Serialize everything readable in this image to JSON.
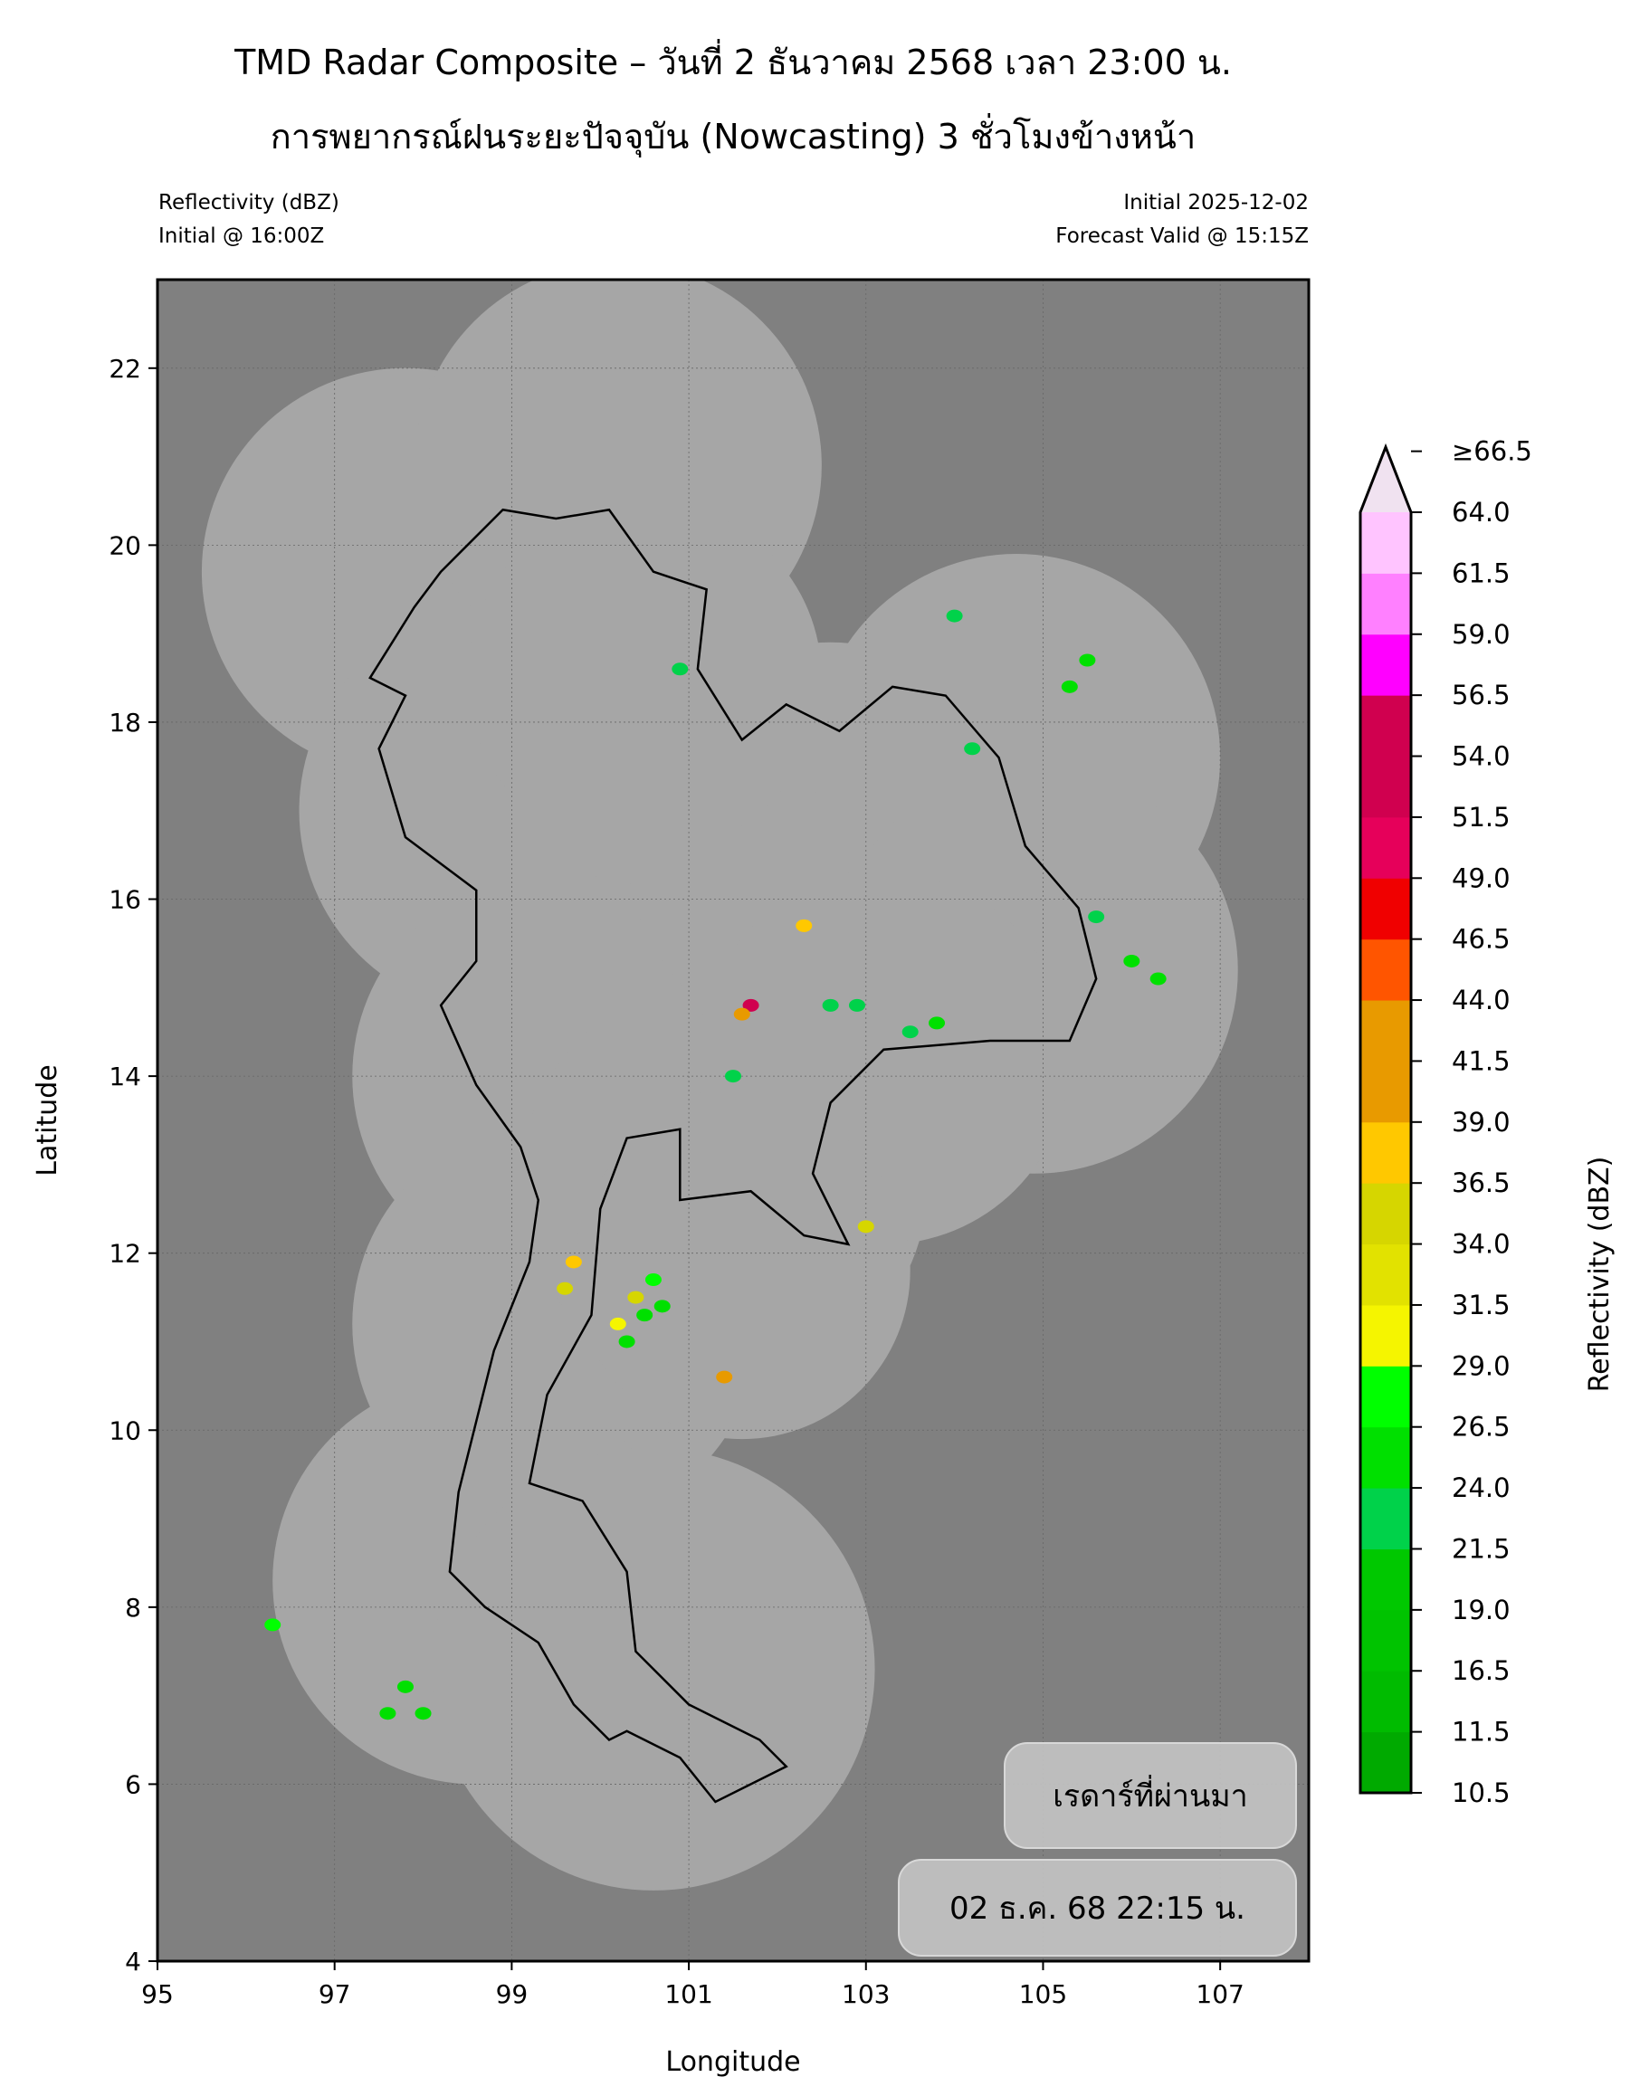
{
  "header": {
    "title": "TMD Radar Composite – วันที่ 2 ธันวาคม 2568 เวลา 23:00 น.",
    "subtitle": "การพยากรณ์ฝนระยะปัจจุบัน (Nowcasting) 3 ชั่วโมงข้างหน้า",
    "left_line1": "Reflectivity (dBZ)",
    "left_line2": "Initial @ 16:00Z",
    "right_line1": "Initial 2025-12-02",
    "right_line2": "Forecast Valid @ 15:15Z"
  },
  "overlay": {
    "label_box": "เรดาร์ที่ผ่านมา",
    "time_box": "02 ธ.ค. 68 22:15 น."
  },
  "chart_data": {
    "type": "heatmap",
    "xlabel": "Longitude",
    "ylabel": "Latitude",
    "xlim": [
      95,
      108
    ],
    "ylim": [
      4,
      23
    ],
    "xticks": [
      95,
      97,
      99,
      101,
      103,
      105,
      107
    ],
    "yticks": [
      4,
      6,
      8,
      10,
      12,
      14,
      16,
      18,
      20,
      22
    ],
    "grid": true,
    "colors": {
      "background": "#808080",
      "coverage": "#a6a6a6"
    },
    "colorbar": {
      "label": "Reflectivity (dBZ)",
      "extend": "max",
      "ticks": [
        "10.5",
        "11.5",
        "16.5",
        "19.0",
        "21.5",
        "24.0",
        "26.5",
        "29.0",
        "31.5",
        "34.0",
        "36.5",
        "39.0",
        "41.5",
        "44.0",
        "46.5",
        "49.0",
        "51.5",
        "54.0",
        "56.5",
        "59.0",
        "61.5",
        "64.0",
        "≥66.5"
      ],
      "colors": [
        "#00aa00",
        "#00bb00",
        "#00c300",
        "#00c800",
        "#00d24a",
        "#00e000",
        "#00ff00",
        "#f5f500",
        "#e2e200",
        "#d6d600",
        "#ffc800",
        "#e89a00",
        "#e89a00",
        "#ff5500",
        "#f00000",
        "#e6005a",
        "#d0004f",
        "#d0004f",
        "#ff00ff",
        "#ff80ff",
        "#ffc4ff",
        "#f0e2f0"
      ]
    },
    "coverage_circles": [
      [
        97.8,
        19.7,
        2.3
      ],
      [
        100.2,
        20.9,
        2.3
      ],
      [
        98.9,
        17.0,
        2.3
      ],
      [
        99.5,
        14.0,
        2.3
      ],
      [
        99.5,
        11.2,
        2.3
      ],
      [
        101.4,
        12.8,
        2.3
      ],
      [
        98.6,
        8.3,
        2.3
      ],
      [
        100.6,
        7.3,
        2.5
      ],
      [
        102.6,
        16.6,
        2.3
      ],
      [
        104.7,
        17.6,
        2.3
      ],
      [
        104.9,
        15.2,
        2.3
      ],
      [
        103.2,
        14.2,
        2.1
      ],
      [
        101.6,
        11.8,
        1.9
      ],
      [
        100.5,
        18.5,
        2.0
      ]
    ],
    "echoes": [
      [
        100.5,
        11.3,
        26
      ],
      [
        100.3,
        11.0,
        24
      ],
      [
        100.6,
        11.7,
        27
      ],
      [
        100.2,
        11.2,
        30
      ],
      [
        100.7,
        11.4,
        24
      ],
      [
        100.4,
        11.5,
        35
      ],
      [
        101.7,
        14.8,
        55
      ],
      [
        101.6,
        14.7,
        40
      ],
      [
        102.3,
        15.7,
        38
      ],
      [
        103.8,
        14.6,
        24
      ],
      [
        103.5,
        14.5,
        22
      ],
      [
        101.5,
        14.0,
        22
      ],
      [
        105.3,
        18.4,
        24
      ],
      [
        105.5,
        18.7,
        26
      ],
      [
        104.2,
        17.7,
        22
      ],
      [
        106.0,
        15.3,
        24
      ],
      [
        106.3,
        15.1,
        24
      ],
      [
        105.6,
        15.8,
        22
      ],
      [
        96.3,
        7.8,
        27
      ],
      [
        97.8,
        7.1,
        26
      ],
      [
        97.6,
        6.8,
        24
      ],
      [
        98.0,
        6.8,
        24
      ],
      [
        99.7,
        11.9,
        37
      ],
      [
        99.6,
        11.6,
        36
      ],
      [
        102.9,
        14.8,
        22
      ],
      [
        102.6,
        14.8,
        22
      ],
      [
        104.0,
        19.2,
        22
      ],
      [
        100.9,
        18.6,
        22
      ],
      [
        103.0,
        12.3,
        36
      ],
      [
        101.4,
        10.6,
        39
      ]
    ]
  }
}
